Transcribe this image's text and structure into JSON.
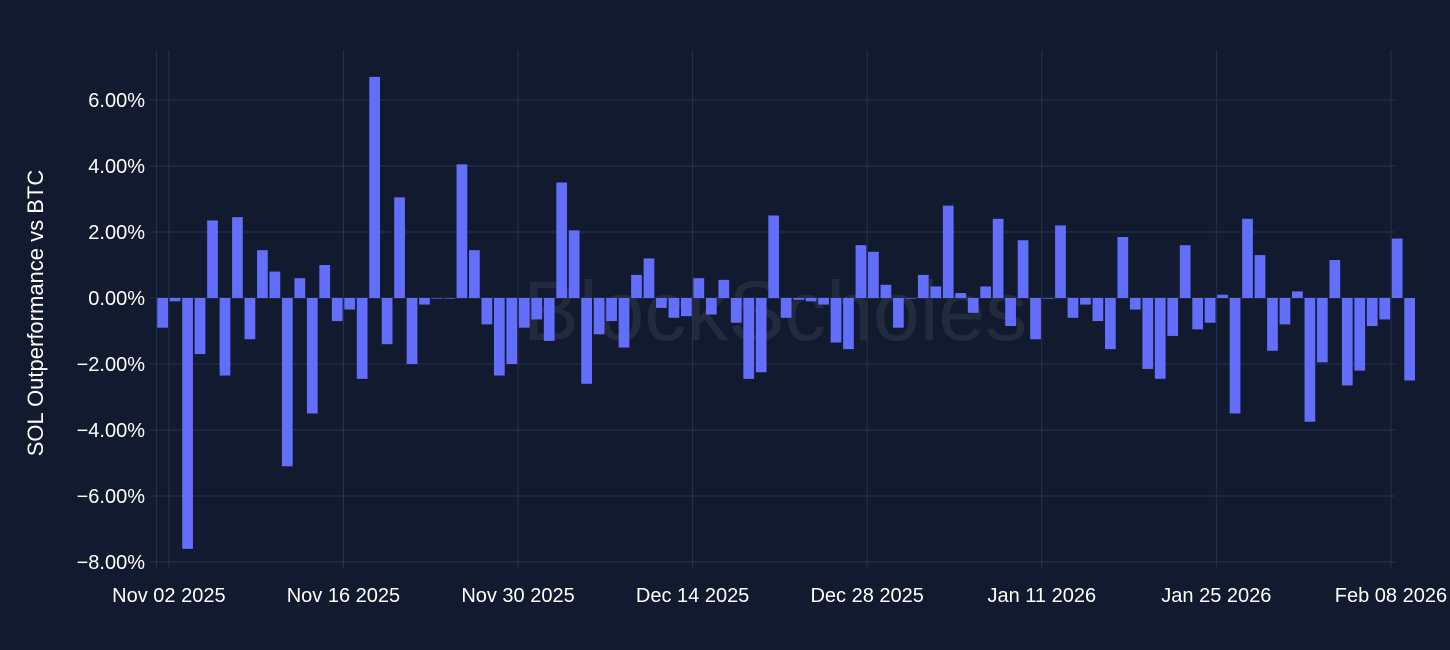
{
  "watermark": "BlockScholes",
  "colors": {
    "background": "#111a2e",
    "grid": "#26334f",
    "bar": "#636efa",
    "text": "#ffffff"
  },
  "chart_data": {
    "type": "bar",
    "ylabel": "SOL Outperformance vs BTC",
    "ylim": [
      -8.2,
      7.5
    ],
    "yticks": [
      6,
      4,
      2,
      0,
      -2,
      -4,
      -6,
      -8
    ],
    "ytick_labels": [
      "6.00%",
      "4.00%",
      "2.00%",
      "0.00%",
      "−2.00%",
      "−4.00%",
      "−6.00%",
      "−8.00%"
    ],
    "x_start": "2025-11-01",
    "xticks": [
      "2025-11-02",
      "2025-11-16",
      "2025-11-30",
      "2025-12-14",
      "2025-12-28",
      "2026-01-11",
      "2026-01-25",
      "2026-02-08"
    ],
    "xtick_labels": [
      "Nov 02 2025",
      "Nov 16 2025",
      "Nov 30 2025",
      "Dec 14 2025",
      "Dec 28 2025",
      "Jan 11 2026",
      "Jan 25 2026",
      "Feb 08 2026"
    ],
    "grid": true,
    "values": [
      -0.9,
      -0.1,
      -7.6,
      -1.7,
      2.35,
      -2.35,
      2.45,
      -1.25,
      1.45,
      0.8,
      -5.1,
      0.6,
      -3.5,
      1.0,
      -0.7,
      -0.35,
      -2.45,
      6.7,
      -1.4,
      3.05,
      -2.0,
      -0.2,
      0.0,
      0.0,
      4.05,
      1.45,
      -0.8,
      -2.35,
      -2.0,
      -0.9,
      -0.65,
      -1.3,
      3.5,
      2.05,
      -2.6,
      -1.1,
      -0.7,
      -1.5,
      0.7,
      1.2,
      -0.3,
      -0.6,
      -0.55,
      0.6,
      -0.5,
      0.55,
      -0.75,
      -2.45,
      -2.25,
      2.5,
      -0.6,
      -0.05,
      -0.1,
      -0.2,
      -1.35,
      -1.55,
      1.6,
      1.4,
      0.4,
      -0.9,
      0.0,
      0.7,
      0.35,
      2.8,
      0.15,
      -0.45,
      0.35,
      2.4,
      -0.85,
      1.75,
      -1.25,
      0.0,
      2.2,
      -0.6,
      -0.2,
      -0.7,
      -1.55,
      1.85,
      -0.35,
      -2.15,
      -2.45,
      -1.15,
      1.6,
      -0.95,
      -0.75,
      0.1,
      -3.5,
      2.4,
      1.3,
      -1.6,
      -0.8,
      0.2,
      -3.75,
      -1.95,
      1.15,
      -2.65,
      -2.2,
      -0.85,
      -0.65,
      1.8,
      -2.5
    ]
  }
}
